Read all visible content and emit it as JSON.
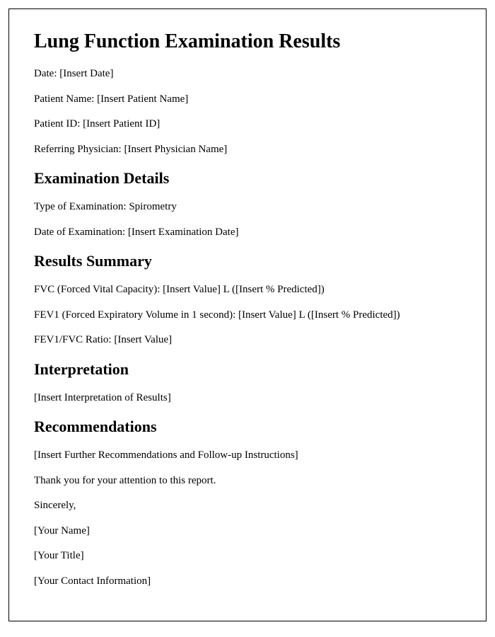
{
  "title": "Lung Function Examination Results",
  "header": {
    "date_label": "Date: ",
    "date_value": "[Insert Date]",
    "patient_name_label": "Patient Name: ",
    "patient_name_value": "[Insert Patient Name]",
    "patient_id_label": "Patient ID: ",
    "patient_id_value": "[Insert Patient ID]",
    "physician_label": "Referring Physician: ",
    "physician_value": "[Insert Physician Name]"
  },
  "exam_details": {
    "heading": "Examination Details",
    "type_label": "Type of Examination: ",
    "type_value": "Spirometry",
    "date_label": "Date of Examination: ",
    "date_value": "[Insert Examination Date]"
  },
  "results": {
    "heading": "Results Summary",
    "fvc_label": "FVC (Forced Vital Capacity): ",
    "fvc_value": "[Insert Value] L ([Insert % Predicted])",
    "fev1_label": "FEV1 (Forced Expiratory Volume in 1 second): ",
    "fev1_value": "[Insert Value] L ([Insert % Predicted])",
    "ratio_label": "FEV1/FVC Ratio: ",
    "ratio_value": "[Insert Value]"
  },
  "interpretation": {
    "heading": "Interpretation",
    "text": "[Insert Interpretation of Results]"
  },
  "recommendations": {
    "heading": "Recommendations",
    "text": "[Insert Further Recommendations and Follow-up Instructions]"
  },
  "closing": {
    "thank_you": "Thank you for your attention to this report.",
    "sincerely": "Sincerely,",
    "name": "[Your Name]",
    "title": "[Your Title]",
    "contact": "[Your Contact Information]"
  }
}
